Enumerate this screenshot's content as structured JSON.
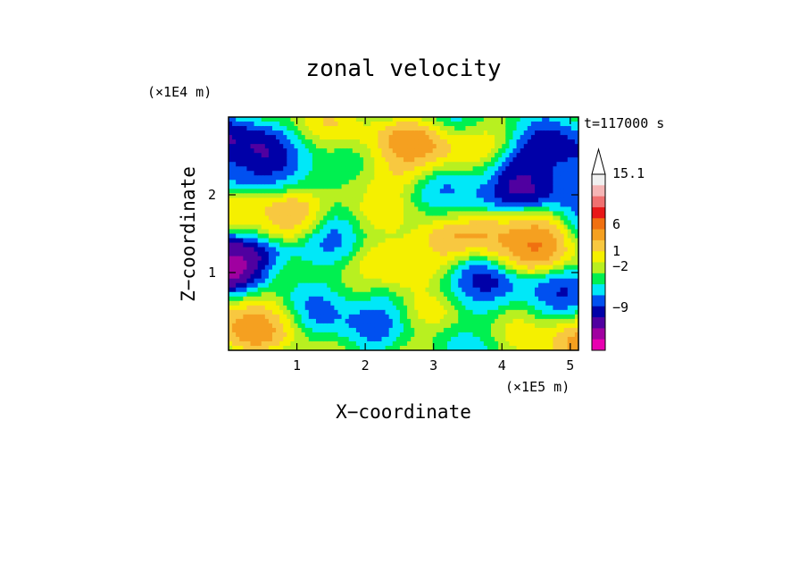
{
  "chart_data": {
    "type": "heatmap",
    "title": "zonal velocity",
    "xlabel": "X−coordinate",
    "ylabel": "Z−coordinate",
    "x_unit": "(×1E5 m)",
    "y_unit": "(×1E4 m)",
    "time_label": "t=117000 s",
    "xlim": [
      0,
      5.12
    ],
    "ylim": [
      0,
      3.0
    ],
    "x_ticks": [
      1,
      2,
      3,
      4,
      5
    ],
    "y_ticks": [
      1,
      2
    ],
    "colorbar": {
      "extend": "max",
      "levels": [
        {
          "color": "#f0f0f0"
        },
        {
          "color": "#f5b5b5"
        },
        {
          "color": "#f07070"
        },
        {
          "color": "#e81818"
        },
        {
          "color": "#f07010"
        },
        {
          "color": "#f5a020"
        },
        {
          "color": "#f8c840"
        },
        {
          "color": "#f5f000"
        },
        {
          "color": "#b8f020"
        },
        {
          "color": "#00f050"
        },
        {
          "color": "#00e8f8"
        },
        {
          "color": "#0050f0"
        },
        {
          "color": "#0000a8"
        },
        {
          "color": "#5000a0"
        },
        {
          "color": "#a000a0"
        },
        {
          "color": "#e800b0"
        }
      ],
      "tick_labels": [
        "15.1",
        "6",
        "1",
        "−2",
        "−9"
      ]
    },
    "field": {
      "description_grid": "zonal velocity contour field",
      "features": [
        {
          "x": 0.18,
          "z": 1.15,
          "value": -9
        },
        {
          "x": 0.12,
          "z": 2.45,
          "value": -5
        },
        {
          "x": 0.7,
          "z": 2.35,
          "value": -3
        },
        {
          "x": 2.2,
          "z": 2.45,
          "value": 3
        },
        {
          "x": 2.75,
          "z": 2.4,
          "value": 6
        },
        {
          "x": 4.5,
          "z": 2.35,
          "value": -5
        },
        {
          "x": 3.3,
          "z": 2.1,
          "value": -1
        },
        {
          "x": 2.4,
          "z": 1.8,
          "value": 1
        },
        {
          "x": 2.8,
          "z": 1.2,
          "value": 5
        },
        {
          "x": 4.2,
          "z": 1.4,
          "value": 5
        },
        {
          "x": 0.45,
          "z": 1.7,
          "value": 6
        },
        {
          "x": 0.4,
          "z": 0.5,
          "value": 5
        },
        {
          "x": 3.5,
          "z": 0.8,
          "value": -2
        },
        {
          "x": 4.7,
          "z": 0.5,
          "value": -1
        },
        {
          "x": 1.8,
          "z": 0.55,
          "value": -1
        },
        {
          "x": 3.0,
          "z": 0.3,
          "value": 2
        },
        {
          "x": 4.9,
          "z": 0.1,
          "value": 5
        },
        {
          "x": 0.9,
          "z": 0.9,
          "value": 0
        },
        {
          "x": 3.8,
          "z": 2.85,
          "value": 2
        },
        {
          "x": 1.2,
          "z": 2.65,
          "value": 2
        }
      ]
    }
  }
}
